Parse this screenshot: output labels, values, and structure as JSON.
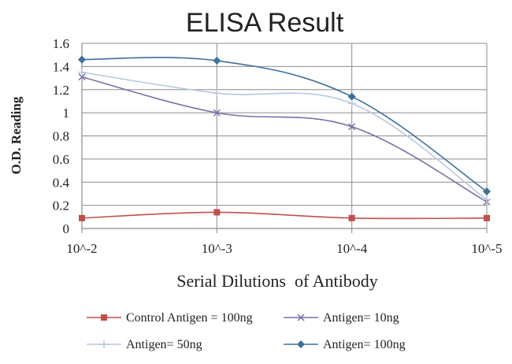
{
  "chart_data": {
    "type": "line",
    "title": "ELISA Result",
    "xlabel": "Serial Dilutions  of Antibody",
    "ylabel": "O.D. Reading",
    "categories": [
      "10^-2",
      "10^-3",
      "10^-4",
      "10^-5"
    ],
    "ylim": [
      0,
      1.6
    ],
    "yticks": [
      "0",
      "0.2",
      "0.4",
      "0.6",
      "0.8",
      "1",
      "1.2",
      "1.4",
      "1.6"
    ],
    "grid": true,
    "legend_position": "bottom",
    "series": [
      {
        "name": "Control Antigen = 100ng",
        "values": [
          0.09,
          0.14,
          0.09,
          0.09
        ],
        "color": "#c0504d",
        "marker": "square"
      },
      {
        "name": "Antigen= 10ng",
        "values": [
          1.31,
          1.0,
          0.88,
          0.23
        ],
        "color": "#7a6fa6",
        "marker": "x"
      },
      {
        "name": "Antigen= 50ng",
        "values": [
          1.35,
          1.17,
          1.08,
          0.25
        ],
        "color": "#b8c7e0",
        "marker": "plus"
      },
      {
        "name": "Antigen= 100ng",
        "values": [
          1.46,
          1.45,
          1.14,
          0.32
        ],
        "color": "#3f6f9c",
        "marker": "diamond"
      }
    ]
  }
}
